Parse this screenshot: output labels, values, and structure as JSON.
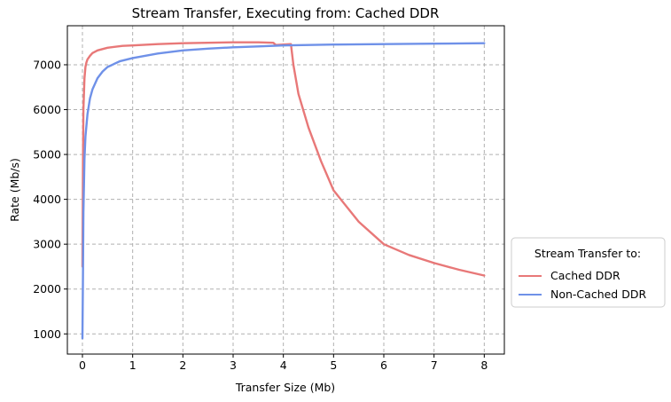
{
  "chart_data": {
    "type": "line",
    "title": "Stream Transfer, Executing from: Cached DDR",
    "xlabel": "Transfer Size (Mb)",
    "ylabel": "Rate (Mb/s)",
    "xlim": [
      -0.3,
      8.4
    ],
    "ylim": [
      550,
      7870
    ],
    "xticks": [
      0,
      1,
      2,
      3,
      4,
      5,
      6,
      7,
      8
    ],
    "yticks": [
      1000,
      2000,
      3000,
      4000,
      5000,
      6000,
      7000
    ],
    "grid": true,
    "legend": {
      "title": "Stream Transfer to:",
      "placement": "outside-right-bottom"
    },
    "series": [
      {
        "name": "Cached DDR",
        "color": "#e87878",
        "x": [
          0.0,
          0.01,
          0.02,
          0.04,
          0.06,
          0.08,
          0.1,
          0.15,
          0.2,
          0.3,
          0.5,
          0.8,
          1.0,
          1.5,
          2.0,
          2.5,
          3.0,
          3.5,
          3.8,
          3.85,
          4.0,
          4.15,
          4.2,
          4.3,
          4.5,
          4.75,
          5.0,
          5.5,
          6.0,
          6.5,
          7.0,
          7.5,
          8.0
        ],
        "y": [
          2500,
          4800,
          6000,
          6700,
          6950,
          7050,
          7120,
          7200,
          7260,
          7320,
          7380,
          7420,
          7430,
          7460,
          7480,
          7490,
          7500,
          7500,
          7490,
          7440,
          7450,
          7460,
          7000,
          6350,
          5600,
          4850,
          4200,
          3500,
          3000,
          2760,
          2580,
          2430,
          2300
        ]
      },
      {
        "name": "Non-Cached DDR",
        "color": "#6f91e8",
        "x": [
          0.0,
          0.01,
          0.02,
          0.04,
          0.06,
          0.1,
          0.15,
          0.2,
          0.3,
          0.4,
          0.5,
          0.75,
          1.0,
          1.5,
          2.0,
          2.5,
          3.0,
          3.5,
          4.0,
          4.5,
          5.0,
          6.0,
          7.0,
          8.0
        ],
        "y": [
          900,
          2300,
          3700,
          4900,
          5400,
          5900,
          6250,
          6450,
          6700,
          6850,
          6950,
          7080,
          7150,
          7250,
          7320,
          7360,
          7390,
          7410,
          7430,
          7440,
          7450,
          7460,
          7470,
          7480
        ]
      }
    ]
  }
}
